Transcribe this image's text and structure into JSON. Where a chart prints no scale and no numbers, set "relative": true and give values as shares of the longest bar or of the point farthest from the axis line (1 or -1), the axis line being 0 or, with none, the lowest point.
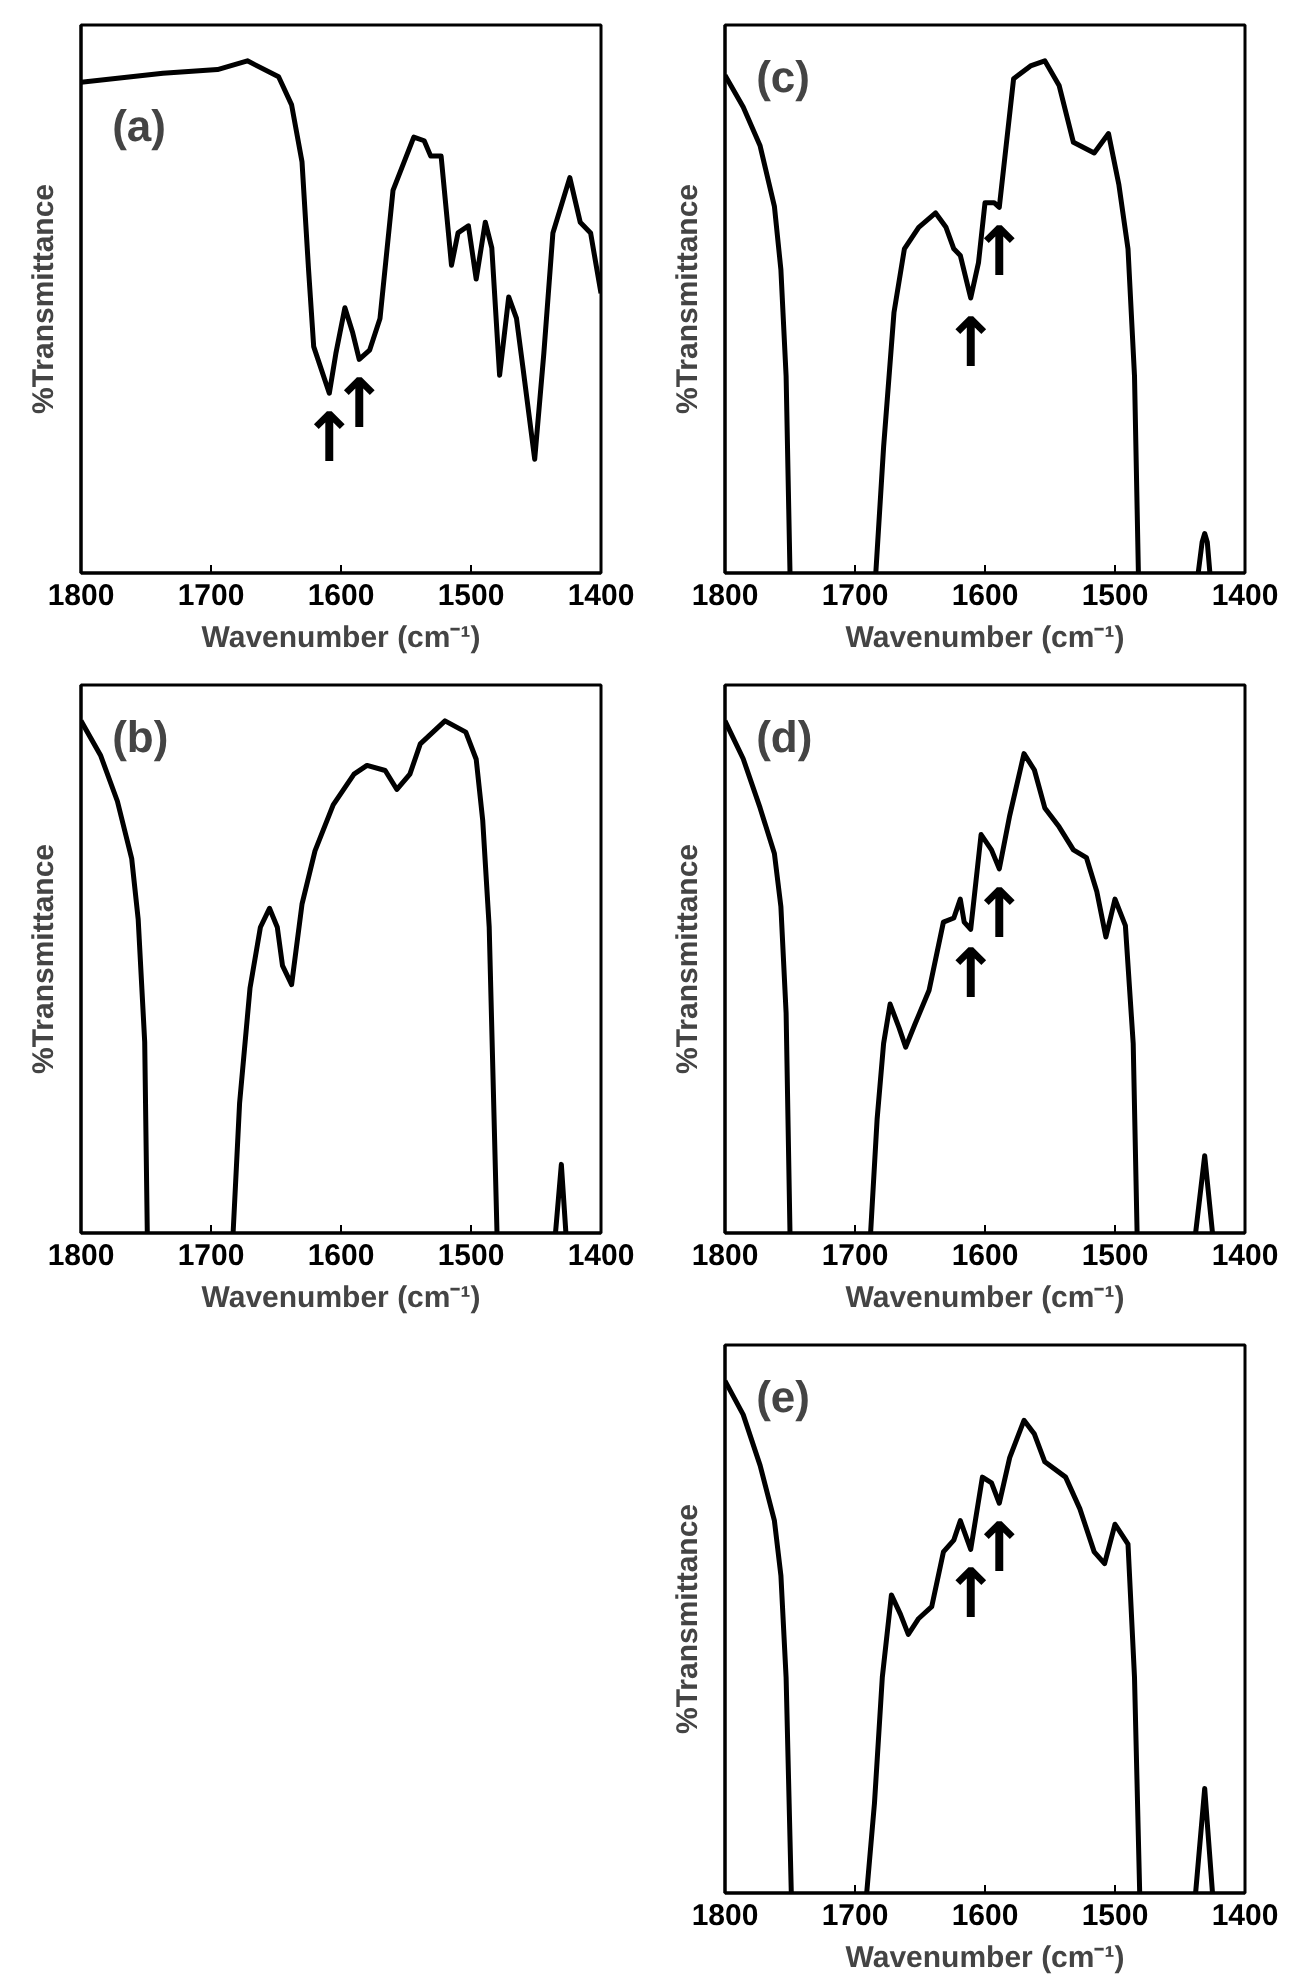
{
  "chart_data": [
    {
      "type": "line",
      "title": "(a)",
      "xlabel": "Wavenumber (cm⁻¹)",
      "ylabel": "%Transmittance",
      "relative": true,
      "xlim": [
        1800,
        1400
      ],
      "xticks": [
        1800,
        1700,
        1600,
        1500,
        1400
      ],
      "grid": false,
      "series": [
        {
          "color": "#000000",
          "x": [
            1800,
            1737,
            1695,
            1672,
            1648,
            1638,
            1630,
            1625,
            1621,
            1609,
            1604,
            1597,
            1591,
            1586,
            1578,
            1570,
            1560,
            1544,
            1536,
            1531,
            1523,
            1515,
            1510,
            1502,
            1496,
            1489,
            1484,
            1478,
            1471,
            1465,
            1460,
            1451,
            1444,
            1437,
            1424,
            1416,
            1408,
            1400
          ],
          "values": [
            0.958,
            0.976,
            0.983,
            1.0,
            0.969,
            0.914,
            0.803,
            0.594,
            0.442,
            0.351,
            0.428,
            0.518,
            0.469,
            0.417,
            0.435,
            0.497,
            0.747,
            0.851,
            0.844,
            0.814,
            0.814,
            0.601,
            0.664,
            0.678,
            0.574,
            0.685,
            0.635,
            0.386,
            0.539,
            0.497,
            0.4,
            0.222,
            0.428,
            0.664,
            0.772,
            0.685,
            0.664,
            0.546
          ]
        }
      ],
      "annotations": [
        {
          "text": "↑",
          "x": 1609,
          "y": 0.351
        },
        {
          "text": "↑",
          "x": 1586,
          "y": 0.417
        }
      ]
    },
    {
      "type": "line",
      "title": "(c)",
      "xlabel": "Wavenumber (cm⁻¹)",
      "ylabel": "%Transmittance",
      "relative": true,
      "xlim": [
        1800,
        1400
      ],
      "xticks": [
        1800,
        1700,
        1600,
        1500,
        1400
      ],
      "grid": false,
      "series": [
        {
          "color": "#000000",
          "x": [
            1800,
            1786,
            1773,
            1762,
            1757,
            1753,
            1750,
            1717,
            1684,
            1678,
            1670,
            1662,
            1651,
            1638,
            1630,
            1624,
            1619,
            1611,
            1605,
            1600,
            1593,
            1589,
            1578,
            1565,
            1554,
            1543,
            1532,
            1516,
            1505,
            1497,
            1490,
            1485,
            1482,
            1460,
            1436,
            1433,
            1431,
            1429,
            1427
          ],
          "values": [
            0.972,
            0.91,
            0.834,
            0.716,
            0.592,
            0.385,
            0,
            null,
            0,
            0.246,
            0.509,
            0.633,
            0.675,
            0.703,
            0.675,
            0.633,
            0.62,
            0.537,
            0.606,
            0.723,
            0.723,
            0.714,
            0.965,
            0.99,
            1.0,
            0.952,
            0.841,
            0.82,
            0.858,
            0.758,
            0.633,
            0.385,
            0,
            null,
            0,
            0.06,
            0.077,
            0.06,
            0
          ]
        }
      ],
      "annotations": [
        {
          "text": "↑",
          "x": 1611,
          "y": 0.537
        },
        {
          "text": "↑",
          "x": 1589,
          "y": 0.714
        }
      ]
    },
    {
      "type": "line",
      "title": "(b)",
      "xlabel": "Wavenumber (cm⁻¹)",
      "ylabel": "%Transmittance",
      "relative": true,
      "xlim": [
        1800,
        1400
      ],
      "xticks": [
        1800,
        1700,
        1600,
        1500,
        1400
      ],
      "grid": false,
      "series": [
        {
          "color": "#000000",
          "x": [
            1800,
            1785,
            1772,
            1761,
            1756,
            1751,
            1749,
            1716,
            1683,
            1678,
            1670,
            1662,
            1655,
            1649,
            1645,
            1638,
            1630,
            1620,
            1606,
            1590,
            1580,
            1566,
            1557,
            1547,
            1539,
            1520,
            1504,
            1496,
            1491,
            1486,
            1480,
            1458,
            1435,
            1430.5,
            1427
          ],
          "values": [
            1.0,
            0.933,
            0.843,
            0.731,
            0.612,
            0.373,
            0,
            null,
            0,
            0.254,
            0.478,
            0.597,
            0.634,
            0.597,
            0.522,
            0.485,
            0.642,
            0.746,
            0.836,
            0.896,
            0.913,
            0.903,
            0.866,
            0.896,
            0.955,
            1.0,
            0.978,
            0.925,
            0.806,
            0.597,
            0,
            null,
            0,
            0.134,
            0
          ]
        }
      ]
    },
    {
      "type": "line",
      "title": "(d)",
      "xlabel": "Wavenumber (cm⁻¹)",
      "ylabel": "%Transmittance",
      "relative": true,
      "xlim": [
        1800,
        1400
      ],
      "xticks": [
        1800,
        1700,
        1600,
        1500,
        1400
      ],
      "grid": false,
      "series": [
        {
          "color": "#000000",
          "x": [
            1800,
            1786,
            1773,
            1762,
            1757,
            1753,
            1750,
            1719,
            1688,
            1683,
            1678,
            1673,
            1666,
            1661,
            1654,
            1643,
            1632,
            1624,
            1619,
            1616,
            1611,
            1603,
            1595,
            1589,
            1581,
            1570,
            1562,
            1554,
            1543,
            1532,
            1522,
            1514,
            1507,
            1500,
            1492,
            1486,
            1483,
            1460,
            1438,
            1431,
            1425
          ],
          "values": [
            1.0,
            0.926,
            0.83,
            0.741,
            0.637,
            0.43,
            0,
            null,
            0,
            0.222,
            0.37,
            0.447,
            0.4,
            0.363,
            0.407,
            0.474,
            0.607,
            0.615,
            0.652,
            0.607,
            0.593,
            0.778,
            0.748,
            0.711,
            0.815,
            0.936,
            0.904,
            0.83,
            0.793,
            0.748,
            0.733,
            0.667,
            0.578,
            0.652,
            0.6,
            0.37,
            0,
            null,
            0,
            0.151,
            0
          ]
        }
      ],
      "annotations": [
        {
          "text": "↑",
          "x": 1611,
          "y": 0.593
        },
        {
          "text": "↑",
          "x": 1589,
          "y": 0.711
        }
      ]
    },
    {
      "type": "line",
      "title": "(e)",
      "xlabel": "Wavenumber (cm⁻¹)",
      "ylabel": "%Transmittance",
      "relative": true,
      "xlim": [
        1800,
        1400
      ],
      "xticks": [
        1800,
        1700,
        1600,
        1500,
        1400
      ],
      "grid": false,
      "series": [
        {
          "color": "#000000",
          "x": [
            1800,
            1786,
            1773,
            1762,
            1757,
            1753,
            1749,
            1720,
            1691,
            1685,
            1679,
            1672,
            1665,
            1659,
            1651,
            1641,
            1632,
            1624,
            1619,
            1611,
            1602,
            1595,
            1589,
            1581,
            1570,
            1562,
            1554,
            1538,
            1527,
            1516,
            1508,
            1500,
            1490,
            1485,
            1481,
            1460,
            1438,
            1431,
            1425
          ],
          "values": [
            1.0,
            0.934,
            0.835,
            0.727,
            0.62,
            0.421,
            0,
            null,
            0,
            0.176,
            0.421,
            0.582,
            0.544,
            0.505,
            0.536,
            0.559,
            0.666,
            0.689,
            0.727,
            0.671,
            0.812,
            0.801,
            0.761,
            0.85,
            0.923,
            0.896,
            0.842,
            0.812,
            0.75,
            0.666,
            0.643,
            0.72,
            0.681,
            0.421,
            0,
            null,
            0,
            0.204,
            0
          ]
        }
      ],
      "annotations": [
        {
          "text": "↑",
          "x": 1611,
          "y": 0.671
        },
        {
          "text": "↑",
          "x": 1589,
          "y": 0.761
        }
      ]
    }
  ]
}
